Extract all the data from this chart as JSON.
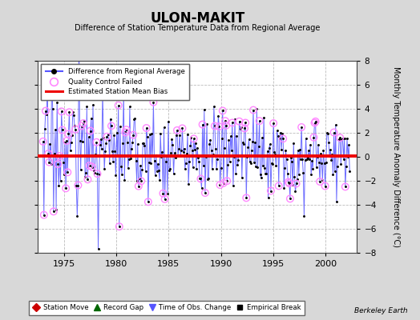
{
  "title": "ULON-MAKIT",
  "subtitle": "Difference of Station Temperature Data from Regional Average",
  "ylabel": "Monthly Temperature Anomaly Difference (°C)",
  "xlabel_years": [
    1975,
    1980,
    1985,
    1990,
    1995,
    2000
  ],
  "ylim": [
    -8,
    8
  ],
  "xlim": [
    1972.5,
    2003.0
  ],
  "bias_value": 0.05,
  "background_color": "#d8d8d8",
  "plot_bg_color": "#ffffff",
  "line_color": "#5555ff",
  "bias_color": "#ee0000",
  "qc_color": "#ff88ff",
  "watermark": "Berkeley Earth",
  "seed": 17
}
